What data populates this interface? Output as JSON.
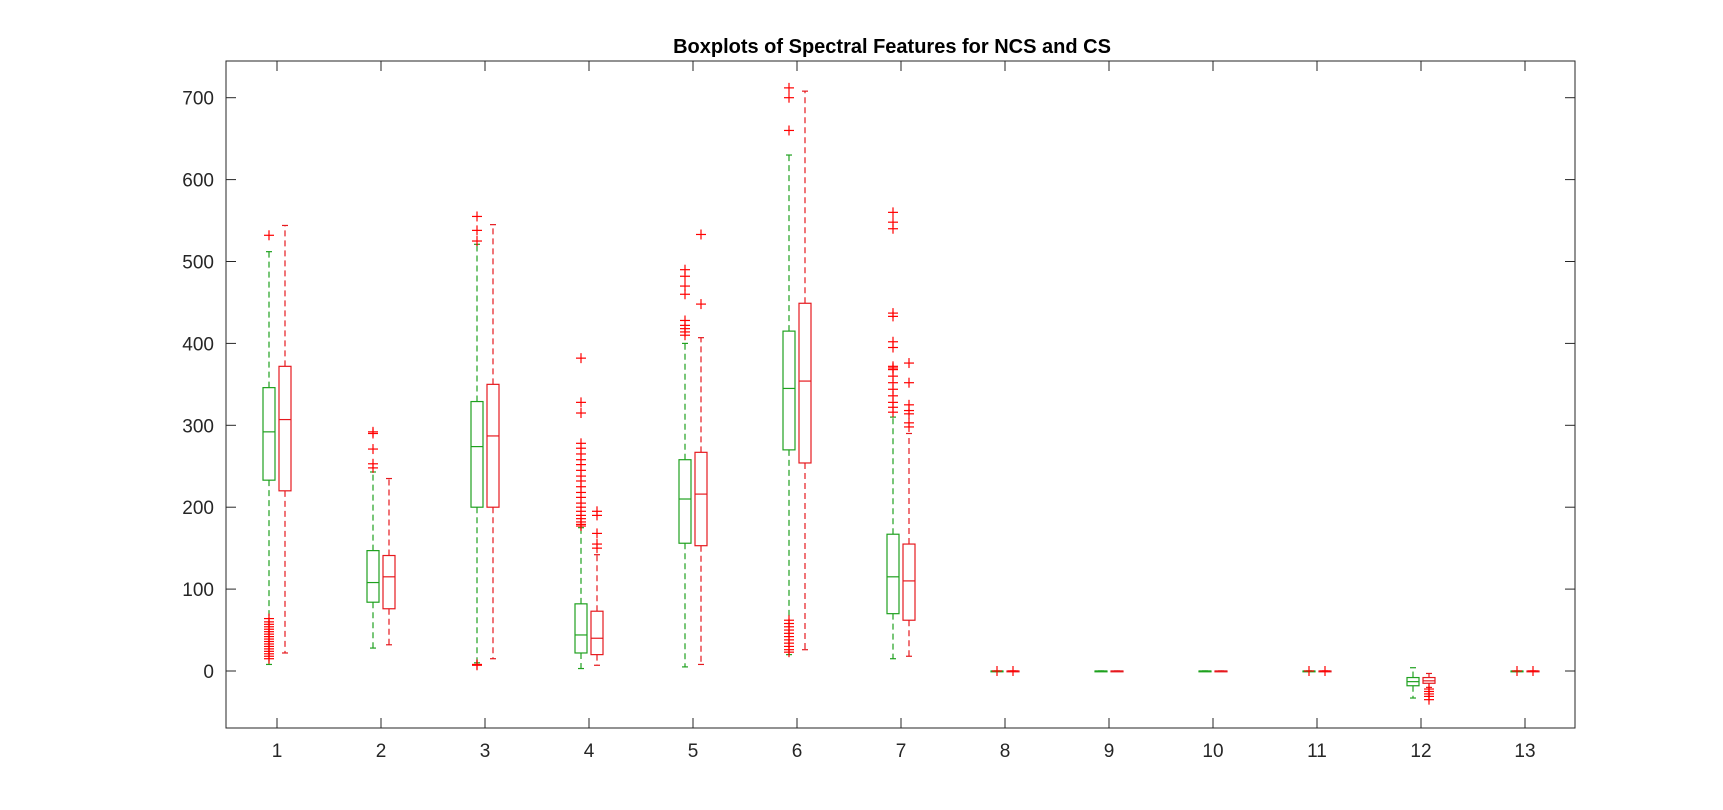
{
  "chart_data": {
    "type": "boxplot",
    "title": "Boxplots of Spectral Features for NCS and CS",
    "xlabel": "",
    "ylabel": "",
    "categories": [
      "1",
      "2",
      "3",
      "4",
      "5",
      "6",
      "7",
      "8",
      "9",
      "10",
      "11",
      "12",
      "13"
    ],
    "ylim": [
      -70,
      745
    ],
    "yticks": [
      0,
      100,
      200,
      300,
      400,
      500,
      600,
      700
    ],
    "grid": false,
    "series": [
      {
        "color": "#1fa11f",
        "boxes": [
          {
            "q1": 233,
            "median": 292,
            "q3": 346,
            "whisker_low": 8,
            "whisker_high": 512,
            "outliers": [
              532,
              64,
              60,
              57,
              54,
              51,
              48,
              45,
              42,
              39,
              36,
              33,
              30,
              27,
              24,
              21,
              18,
              15
            ]
          },
          {
            "q1": 84,
            "median": 108,
            "q3": 147,
            "whisker_low": 28,
            "whisker_high": 243,
            "outliers": [
              292,
              290,
              271,
              253,
              248
            ]
          },
          {
            "q1": 200,
            "median": 274,
            "q3": 329,
            "whisker_low": 10,
            "whisker_high": 521,
            "outliers": [
              555,
              538,
              525,
              8,
              7
            ]
          },
          {
            "q1": 22,
            "median": 44,
            "q3": 82,
            "whisker_low": 3,
            "whisker_high": 175,
            "outliers": [
              382,
              328,
              315,
              278,
              272,
              265,
              258,
              252,
              245,
              238,
              232,
              225,
              218,
              212,
              205,
              200,
              195,
              190,
              186,
              182,
              179,
              177
            ]
          },
          {
            "q1": 156,
            "median": 210,
            "q3": 258,
            "whisker_low": 5,
            "whisker_high": 400,
            "outliers": [
              490,
              482,
              470,
              460,
              428,
              422,
              418,
              414,
              410
            ]
          },
          {
            "q1": 270,
            "median": 345,
            "q3": 415,
            "whisker_low": 20,
            "whisker_high": 630,
            "outliers": [
              712,
              700,
              660,
              62,
              58,
              54,
              50,
              46,
              42,
              38,
              34,
              30,
              26,
              23
            ]
          },
          {
            "q1": 70,
            "median": 115,
            "q3": 167,
            "whisker_low": 15,
            "whisker_high": 310,
            "outliers": [
              560,
              548,
              540,
              437,
              433,
              402,
              395,
              372,
              370,
              368,
              360,
              352,
              344,
              336,
              328,
              322,
              316
            ]
          },
          {
            "q1": 0,
            "median": 0,
            "q3": 0,
            "whisker_low": 0,
            "whisker_high": 0,
            "outliers": [
              0
            ]
          },
          {
            "q1": 0,
            "median": 0,
            "q3": 0,
            "whisker_low": 0,
            "whisker_high": 0,
            "outliers": []
          },
          {
            "q1": 0,
            "median": 0,
            "q3": 0,
            "whisker_low": 0,
            "whisker_high": 0,
            "outliers": []
          },
          {
            "q1": 0,
            "median": 0,
            "q3": 0,
            "whisker_low": 0,
            "whisker_high": 0,
            "outliers": [
              0
            ]
          },
          {
            "q1": -18,
            "median": -13,
            "q3": -8,
            "whisker_low": -33,
            "whisker_high": 4,
            "outliers": []
          },
          {
            "q1": 0,
            "median": 0,
            "q3": 0,
            "whisker_low": 0,
            "whisker_high": 0,
            "outliers": [
              0
            ]
          }
        ]
      },
      {
        "color": "#e6191e",
        "boxes": [
          {
            "q1": 220,
            "median": 307,
            "q3": 372,
            "whisker_low": 22,
            "whisker_high": 544,
            "outliers": []
          },
          {
            "q1": 76,
            "median": 115,
            "q3": 141,
            "whisker_low": 32,
            "whisker_high": 235,
            "outliers": []
          },
          {
            "q1": 200,
            "median": 287,
            "q3": 350,
            "whisker_low": 15,
            "whisker_high": 545,
            "outliers": []
          },
          {
            "q1": 20,
            "median": 40,
            "q3": 73,
            "whisker_low": 7,
            "whisker_high": 142,
            "outliers": [
              195,
              190,
              168,
              155,
              150
            ]
          },
          {
            "q1": 153,
            "median": 216,
            "q3": 267,
            "whisker_low": 8,
            "whisker_high": 407,
            "outliers": [
              533,
              448
            ]
          },
          {
            "q1": 254,
            "median": 354,
            "q3": 449,
            "whisker_low": 26,
            "whisker_high": 708,
            "outliers": []
          },
          {
            "q1": 62,
            "median": 110,
            "q3": 155,
            "whisker_low": 18,
            "whisker_high": 290,
            "outliers": [
              376,
              352,
              325,
              318,
              314,
              303,
              298
            ]
          },
          {
            "q1": 0,
            "median": 0,
            "q3": 0,
            "whisker_low": 0,
            "whisker_high": 0,
            "outliers": [
              0
            ]
          },
          {
            "q1": 0,
            "median": 0,
            "q3": 0,
            "whisker_low": 0,
            "whisker_high": 0,
            "outliers": []
          },
          {
            "q1": 0,
            "median": 0,
            "q3": 0,
            "whisker_low": 0,
            "whisker_high": 0,
            "outliers": []
          },
          {
            "q1": 0,
            "median": 0,
            "q3": 0,
            "whisker_low": 0,
            "whisker_high": 0,
            "outliers": [
              0
            ]
          },
          {
            "q1": -15,
            "median": -12,
            "q3": -8,
            "whisker_low": -20,
            "whisker_high": -3,
            "outliers": [
              -22,
              -25,
              -28,
              -31,
              -35
            ]
          },
          {
            "q1": 0,
            "median": 0,
            "q3": 0,
            "whisker_low": 0,
            "whisker_high": 0,
            "outliers": [
              0
            ]
          }
        ]
      }
    ]
  }
}
